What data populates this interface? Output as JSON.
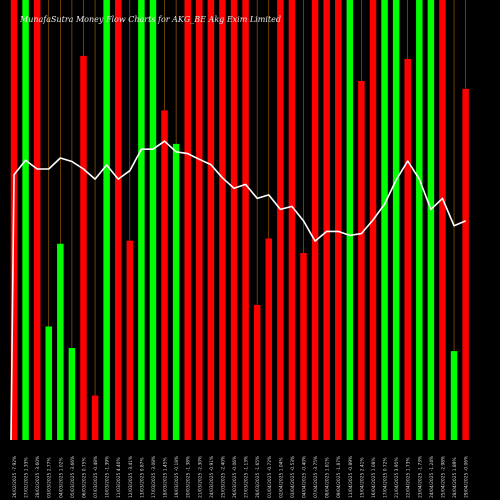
{
  "chart_data": {
    "type": "bar",
    "title": "MunafaSutra  Money Flow  Charts for AKG_BE                    Akg Exim Limited",
    "ylim": [
      0,
      100
    ],
    "colors": {
      "background": "#000000",
      "up": "#00ff00",
      "down": "#ff0000",
      "line": "#ffffff",
      "grid": "#b06a00"
    },
    "categories": [
      "26 Wed Feb 2025",
      "27 Thu Feb 2025",
      "28 Fri Feb 2025",
      "03 Mon Mar 2025",
      "04 Tue Mar 2025",
      "05 Wed Mar 2025",
      "06 Thu Mar 2025",
      "07 Fri Mar 2025",
      "10 Mon Mar 2025",
      "11 Tue Mar 2025",
      "12 Wed Mar 2025",
      "13 Thu Mar 2025",
      "17 Mon Mar 2025",
      "18 Tue Mar 2025",
      "19 Wed Mar 2025",
      "20 Thu Mar 2025",
      "21 Fri Mar 2025",
      "24 Mon Mar 2025",
      "25 Tue Mar 2025",
      "26 Wed Mar 2025",
      "27 Thu Mar 2025",
      "28 Fri Mar 2025",
      "01 Tue Apr 2025",
      "02 Wed Apr 2025",
      "03 Thu Apr 2025",
      "04 Fri Apr 2025",
      "07 Mon Apr 2025",
      "08 Tue Apr 2025",
      "09 Wed Apr 2025",
      "11 Fri Apr 2025",
      "15 Tue Apr 2025",
      "16 Wed Apr 2025",
      "17 Thu Apr 2025",
      "21 Mon Apr 2025",
      "22 Tue Apr 2025",
      "23 Wed Apr 2025",
      "24 Thu Apr 2025",
      "25 Fri Apr 2025",
      "28 Mon Apr 2025",
      "29 Tue Apr 2025"
    ],
    "tick_labels": [
      "26/02/2025 -7.92%",
      "27/02/2025 1.33%",
      "28/02/2025 -3.60%",
      "03/03/2025 2.77%",
      "04/03/2025 1.02%",
      "05/03/2025 -3.66%",
      "06/03/2025 0.75%",
      "07/03/2025 -0.48%",
      "10/03/2025 -1.39%",
      "11/03/2025 4.40%",
      "12/03/2025 -3.41%",
      "13/03/2025 0.87%",
      "17/03/2025 -3.08%",
      "18/03/2025 1.45%",
      "19/03/2025 -0.18%",
      "20/03/2025 -1.38%",
      "21/03/2025 -2.30%",
      "24/03/2025 -0.91%",
      "25/03/2025 -2.40%",
      "26/03/2025 -0.06%",
      "27/03/2025 -1.13%",
      "28/03/2025 -1.65%",
      "01/04/2025 -0.72%",
      "02/04/2025 1.04%",
      "03/04/2025 -0.53%",
      "04/04/2025 -0.40%",
      "07/04/2025 -3.75%",
      "08/04/2025 1.81%",
      "09/04/2025 -1.87%",
      "11/04/2025 -0.89%",
      "15/04/2025 2.41%",
      "16/04/2025 1.08%",
      "17/04/2025 0.72%",
      "21/04/2025 3.95%",
      "22/04/2025 1.73%",
      "23/04/2025 -1.73%",
      "24/04/2025 -1.24%",
      "25/04/2025 -2.98%",
      "28/04/2025 1.89%",
      "29/04/2025 -0.06%"
    ],
    "series": [
      {
        "type": "bar",
        "values": [
          100,
          100,
          100,
          25.8,
          44.6,
          20.9,
          87.3,
          10.1,
          100,
          100,
          45.3,
          100,
          100,
          74.9,
          67.3,
          100,
          100,
          100,
          100,
          100,
          100,
          30.7,
          45.8,
          100,
          100,
          42.5,
          100,
          100,
          100,
          100,
          81.6,
          100,
          100,
          100,
          86.6,
          100,
          100,
          100,
          20.2,
          79.8
        ],
        "directions": [
          "down",
          "up",
          "down",
          "up",
          "up",
          "up",
          "down",
          "down",
          "up",
          "down",
          "down",
          "up",
          "up",
          "down",
          "up",
          "down",
          "down",
          "down",
          "down",
          "down",
          "down",
          "down",
          "down",
          "down",
          "down",
          "down",
          "down",
          "down",
          "down",
          "up",
          "down",
          "down",
          "up",
          "up",
          "down",
          "up",
          "up",
          "down",
          "up",
          "down"
        ]
      },
      {
        "type": "line",
        "values": [
          60.3,
          63.6,
          61.6,
          61.6,
          64.1,
          63.3,
          61.6,
          59.3,
          62.5,
          59.3,
          61.2,
          66.1,
          66.1,
          67.9,
          65.5,
          65.1,
          63.8,
          62.6,
          59.6,
          57.2,
          58.1,
          54.9,
          55.7,
          52.4,
          53.1,
          49.8,
          45.2,
          47.4,
          47.4,
          46.5,
          46.9,
          50.0,
          53.6,
          59.1,
          63.4,
          59.3,
          52.4,
          54.9,
          48.7,
          49.8
        ],
        "lead_in": 0
      }
    ]
  }
}
